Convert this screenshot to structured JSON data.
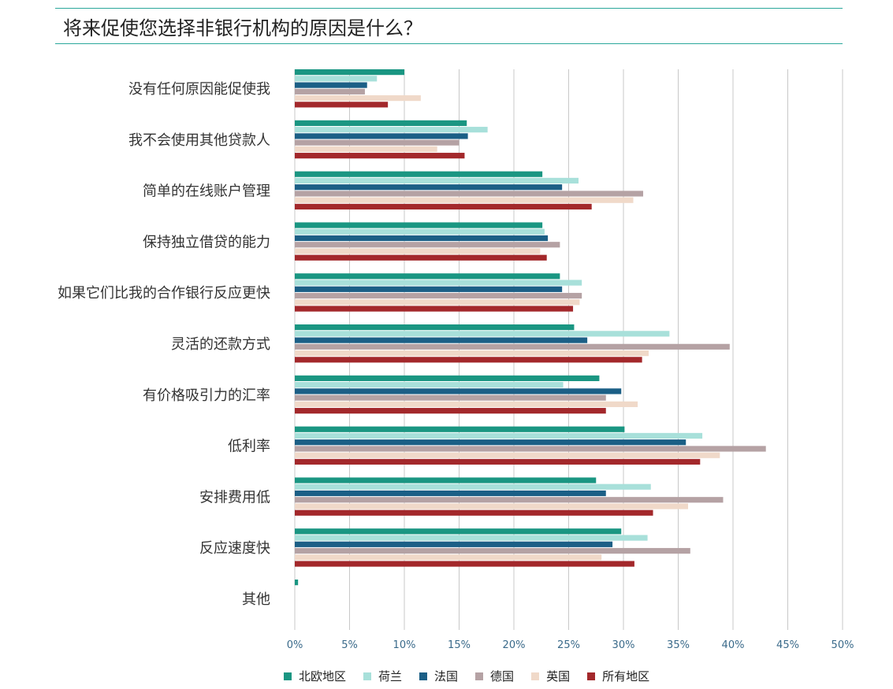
{
  "page": {
    "title": "将来促使您选择非银行机构的原因是什么？"
  },
  "colors": {
    "nordic": "#1a9682",
    "netherlands": "#a8e0da",
    "france": "#1b5f86",
    "germany": "#b5a2a4",
    "uk": "#f0d9c9",
    "all": "#a3282b",
    "grid": "#c8c8c8",
    "title_rule": "#2aa79b"
  },
  "legend": [
    {
      "label": "北欧地区",
      "color": "#1a9682"
    },
    {
      "label": "荷兰",
      "color": "#a8e0da"
    },
    {
      "label": "法国",
      "color": "#1b5f86"
    },
    {
      "label": "德国",
      "color": "#b5a2a4"
    },
    {
      "label": "英国",
      "color": "#f0d9c9"
    },
    {
      "label": "所有地区",
      "color": "#a3282b"
    }
  ],
  "chart_data": {
    "type": "bar",
    "orientation": "horizontal",
    "title": "将来促使您选择非银行机构的原因是什么？",
    "xlim": [
      0,
      50
    ],
    "ticks": [
      "0%",
      "5%",
      "10%",
      "15%",
      "20%",
      "25%",
      "30%",
      "35%",
      "40%",
      "45%",
      "50%"
    ],
    "grid": true,
    "legend_position": "bottom",
    "categories": [
      "没有任何原因能促使我",
      "我不会使用其他贷款人",
      "简单的在线账户管理",
      "保持独立借贷的能力",
      "如果它们比我的合作银行反应更快",
      "灵活的还款方式",
      "有价格吸引力的汇率",
      "低利率",
      "安排费用低",
      "反应速度快",
      "其他"
    ],
    "series": [
      {
        "name": "北欧地区",
        "values": [
          10,
          15.7,
          22.6,
          22.6,
          24.2,
          25.5,
          27.8,
          30.1,
          27.5,
          29.8,
          0.3
        ]
      },
      {
        "name": "荷兰",
        "values": [
          7.5,
          17.6,
          25.9,
          22.8,
          26.2,
          34.2,
          24.5,
          37.2,
          32.5,
          32.2,
          0
        ]
      },
      {
        "name": "法国",
        "values": [
          6.6,
          15.8,
          24.4,
          23.1,
          24.4,
          26.7,
          29.8,
          35.7,
          28.4,
          29,
          0
        ]
      },
      {
        "name": "德国",
        "values": [
          6.4,
          15,
          31.8,
          24.2,
          26.2,
          39.7,
          28.4,
          43,
          39.1,
          36.1,
          0
        ]
      },
      {
        "name": "英国",
        "values": [
          11.5,
          13,
          30.9,
          22.4,
          26,
          32.3,
          31.3,
          38.8,
          35.9,
          28,
          0
        ]
      },
      {
        "name": "所有地区",
        "values": [
          8.5,
          15.5,
          27.1,
          23,
          25.4,
          31.7,
          28.4,
          37,
          32.7,
          31,
          0
        ]
      }
    ]
  }
}
